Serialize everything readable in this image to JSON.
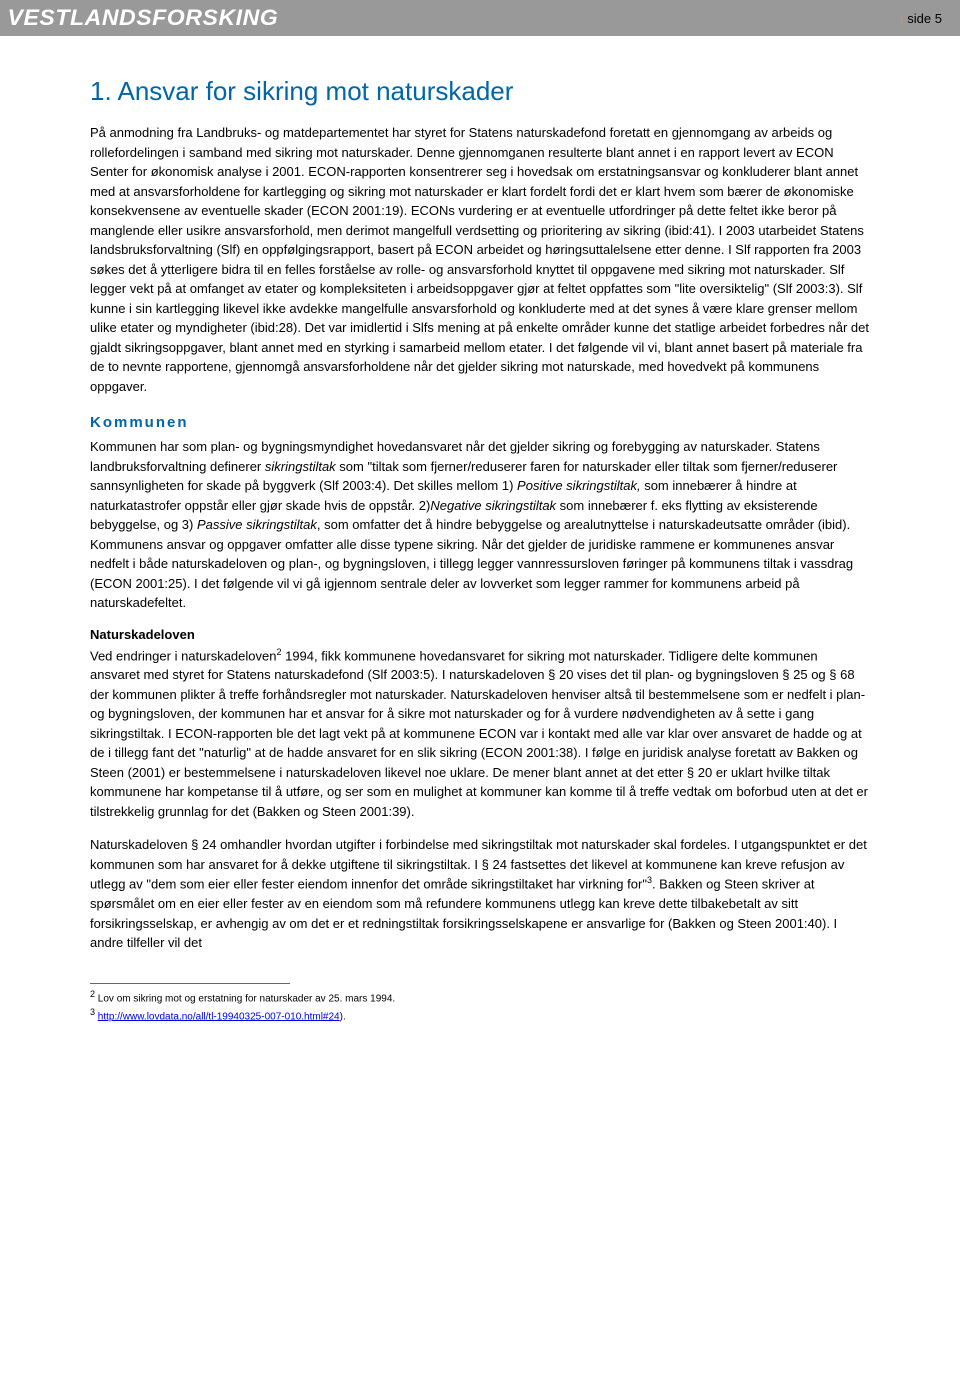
{
  "header": {
    "logo": "VESTLANDSFORSKING",
    "page_label": "side 5"
  },
  "main_heading": "1. Ansvar for sikring mot naturskader",
  "intro_paragraph": "På anmodning fra Landbruks- og matdepartementet har styret for Statens naturskadefond foretatt en gjennomgang av arbeids og rollefordelingen i samband med sikring mot naturskader. Denne gjennomganen resulterte blant annet i en rapport levert av ECON Senter for økonomisk analyse i 2001. ECON-rapporten konsentrerer seg i hovedsak om erstatningsansvar og konkluderer blant annet med at ansvarsforholdene for kartlegging og sikring mot naturskader er klart fordelt fordi det er klart hvem som bærer de økonomiske konsekvensene av eventuelle skader (ECON 2001:19). ECONs vurdering er at eventuelle utfordringer på dette feltet ikke beror på manglende eller usikre ansvarsforhold, men derimot mangelfull verdsetting og prioritering av sikring (ibid:41). I 2003 utarbeidet Statens landsbruksforvaltning (Slf) en oppfølgingsrapport, basert på ECON arbeidet og høringsuttalelsene etter denne. I Slf rapporten fra 2003 søkes det å ytterligere bidra til en felles forståelse av rolle- og ansvarsforhold knyttet til oppgavene med sikring mot naturskader. Slf legger vekt på at omfanget av etater og kompleksiteten i arbeidsoppgaver gjør at feltet oppfattes som \"lite oversiktelig\" (Slf 2003:3). Slf kunne i sin kartlegging likevel ikke avdekke mangelfulle ansvarsforhold og konkluderte med at det synes å være klare grenser mellom ulike etater og myndigheter (ibid:28). Det var imidlertid i Slfs mening at på enkelte områder kunne det statlige arbeidet forbedres når det gjaldt sikringsoppgaver, blant annet med en styrking i samarbeid mellom etater. I det følgende vil vi, blant annet basert på materiale fra de to nevnte rapportene, gjennomgå ansvarsforholdene når det gjelder sikring mot naturskade, med hovedvekt på kommunens oppgaver.",
  "section_kommunen": {
    "heading": "Kommunen",
    "p1_a": "Kommunen har som plan- og bygningsmyndighet hovedansvaret når det gjelder sikring og forebygging av naturskader. Statens landbruksforvaltning definerer ",
    "p1_b": "sikringstiltak",
    "p1_c": " som \"tiltak som fjerner/reduserer faren for naturskader eller tiltak som fjerner/reduserer sannsynligheten for skade på byggverk (Slf 2003:4). Det skilles mellom 1) ",
    "p1_d": "Positive sikringstiltak,",
    "p1_e": " som innebærer å hindre at naturkatastrofer oppstår eller gjør skade hvis de oppstår. 2)",
    "p1_f": "Negative sikringstiltak",
    "p1_g": " som innebærer f. eks flytting av eksisterende bebyggelse, og 3) ",
    "p1_h": "Passive sikringstiltak",
    "p1_i": ", som omfatter det å hindre bebyggelse og arealutnyttelse i naturskadeutsatte områder (ibid). Kommunens ansvar og oppgaver omfatter alle disse typene sikring. Når det gjelder de juridiske rammene er kommunenes ansvar nedfelt i både naturskadeloven og plan-, og bygningsloven, i tillegg legger vannressursloven føringer på kommunens tiltak i vassdrag (ECON 2001:25). I det følgende vil vi gå igjennom sentrale deler av lovverket som legger rammer for kommunens arbeid på naturskadefeltet."
  },
  "section_naturskadeloven": {
    "heading": "Naturskadeloven",
    "p1_a": "Ved endringer i naturskadeloven",
    "p1_sup1": "2",
    "p1_b": " 1994, fikk kommunene hovedansvaret for sikring mot naturskader. Tidligere delte kommunen ansvaret med styret for Statens naturskadefond (Slf 2003:5). I naturskadeloven § 20 vises det til plan- og bygningsloven § 25 og § 68 der kommunen plikter å treffe forhåndsregler mot naturskader. Naturskadeloven henviser altså til bestemmelsene som er nedfelt i plan- og bygningsloven, der kommunen har et ansvar for å sikre mot naturskader og for å vurdere nødvendigheten av å sette i gang sikringstiltak. I ECON-rapporten ble det lagt vekt på at kommunene ECON var i kontakt med alle var klar over ansvaret de hadde og at de i tillegg fant det \"naturlig\" at de hadde ansvaret for en slik sikring (ECON 2001:38). I følge en juridisk analyse foretatt av Bakken og Steen (2001) er bestemmelsene i naturskadeloven likevel noe uklare. De mener blant annet at det etter § 20 er uklart hvilke tiltak kommunene har kompetanse til å utføre, og ser som en mulighet at kommuner kan komme til å treffe vedtak om boforbud uten at det er tilstrekkelig grunnlag for det (Bakken og Steen 2001:39).",
    "p2_a": "Naturskadeloven § 24 omhandler hvordan utgifter i forbindelse med sikringstiltak mot naturskader skal fordeles. I utgangspunktet er det kommunen som har ansvaret for å dekke utgiftene til sikringstiltak. I § 24 fastsettes det likevel at kommunene kan kreve refusjon av utlegg av \"dem som eier eller fester eiendom innenfor det område sikringstiltaket har virkning for\"",
    "p2_sup": "3",
    "p2_b": ". Bakken og Steen skriver at spørsmålet om en eier eller fester av en eiendom som må refundere kommunens utlegg kan kreve dette tilbakebetalt av sitt forsikringsselskap, er avhengig av om det er et redningstiltak forsikringsselskapene er ansvarlige for (Bakken og Steen 2001:40). I andre tilfeller vil det"
  },
  "footnotes": {
    "f2_num": "2",
    "f2_text": " Lov om sikring mot og erstatning for naturskader av 25. mars 1994.",
    "f3_num": "3",
    "f3_text_a": " ",
    "f3_link": "http://www.lovdata.no/all/tl-19940325-007-010.html#24",
    "f3_text_b": ")."
  },
  "colors": {
    "heading_blue": "#0066a6",
    "header_bg": "#999999",
    "text": "#000000",
    "link": "#0000ee",
    "pipe": "#ff8c00"
  }
}
